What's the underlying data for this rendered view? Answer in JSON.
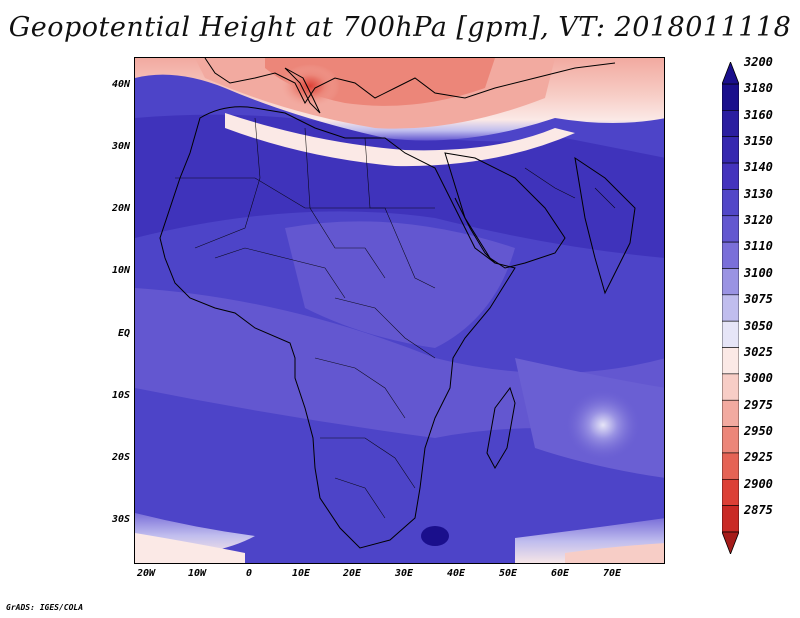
{
  "title": "Geopotential Height at 700hPa [gpm], VT: 2018011118",
  "credit": "GrADS: IGES/COLA",
  "map": {
    "lat_labels": [
      "40N",
      "30N",
      "20N",
      "10N",
      "EQ",
      "10S",
      "20S",
      "30S"
    ],
    "lon_labels": [
      "20W",
      "10W",
      "0",
      "10E",
      "20E",
      "30E",
      "40E",
      "50E",
      "60E",
      "70E"
    ]
  },
  "colorbar": {
    "levels": [
      "3200",
      "3180",
      "3160",
      "3150",
      "3140",
      "3130",
      "3120",
      "3110",
      "3100",
      "3075",
      "3050",
      "3025",
      "3000",
      "2975",
      "2950",
      "2925",
      "2900",
      "2875"
    ],
    "colors": [
      "#1a0f8c",
      "#2b1ea0",
      "#3628b0",
      "#4433bd",
      "#5247c8",
      "#6357d0",
      "#7a6fd9",
      "#9a93e3",
      "#c0bdee",
      "#e6e5f7",
      "#fbe9e6",
      "#f7cdc6",
      "#f2aaa0",
      "#ec8679",
      "#e56355",
      "#dc4036",
      "#c92a25",
      "#a51c1a"
    ]
  }
}
